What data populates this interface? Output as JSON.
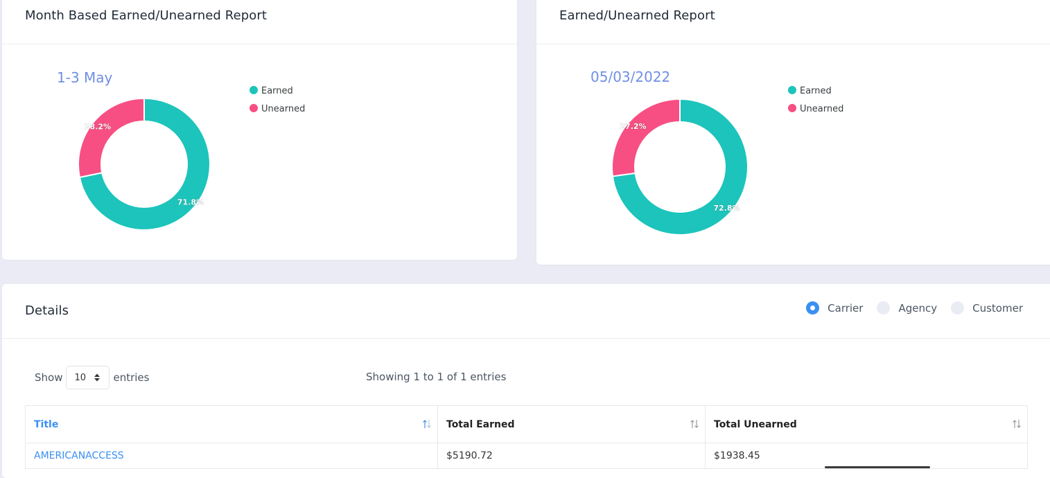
{
  "month_card": {
    "title": "Month Based Earned/Unearned Report",
    "chart_data": {
      "type": "pie",
      "subtitle": "1-3 May",
      "categories": [
        "Earned",
        "Unearned"
      ],
      "values": [
        71.8,
        28.2
      ],
      "labels": [
        "71.8%",
        "28.2%"
      ],
      "colors": [
        "#1cc4bb",
        "#f74f83"
      ],
      "legend_position": "right"
    }
  },
  "date_card": {
    "title": "Earned/Unearned Report",
    "chart_data": {
      "type": "pie",
      "subtitle": "05/03/2022",
      "categories": [
        "Earned",
        "Unearned"
      ],
      "values": [
        72.8,
        27.2
      ],
      "labels": [
        "72.8%",
        "27.2%"
      ],
      "colors": [
        "#1cc4bb",
        "#f74f83"
      ],
      "legend_position": "right"
    }
  },
  "details": {
    "title": "Details",
    "radio_options": [
      {
        "label": "Carrier",
        "checked": true
      },
      {
        "label": "Agency",
        "checked": false
      },
      {
        "label": "Customer",
        "checked": false
      }
    ],
    "show_label": "Show",
    "entries_value": "10",
    "entries_label": "entries",
    "info": "Showing 1 to 1 of 1 entries",
    "columns": [
      "Title",
      "Total Earned",
      "Total Unearned"
    ],
    "rows": [
      {
        "title": "AMERICANACCESS",
        "total_earned": "$5190.72",
        "total_unearned": "$1938.45"
      }
    ]
  },
  "colors": {
    "accent": "#3b8ff3",
    "earned": "#1cc4bb",
    "unearned": "#f74f83",
    "subtitle": "#6f8fe4"
  }
}
